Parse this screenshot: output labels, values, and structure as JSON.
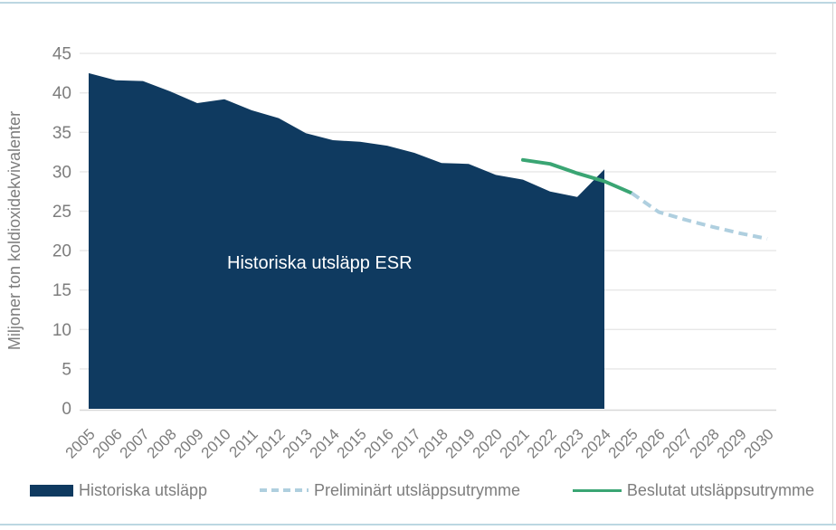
{
  "chart_data": {
    "type": "area",
    "title": "",
    "ylabel": "Miljoner ton koldioxidekvivalenter",
    "xlabel": "",
    "ylim": [
      0,
      45
    ],
    "xlim": [
      2005,
      2030
    ],
    "grid": true,
    "y_ticks": [
      0,
      5,
      10,
      15,
      20,
      25,
      30,
      35,
      40,
      45
    ],
    "x_ticks": [
      2005,
      2006,
      2007,
      2008,
      2009,
      2010,
      2011,
      2012,
      2013,
      2014,
      2015,
      2016,
      2017,
      2018,
      2019,
      2020,
      2021,
      2022,
      2023,
      2024,
      2025,
      2026,
      2027,
      2028,
      2029,
      2030
    ],
    "annotation": "Historiska utsläpp ESR",
    "legend_position": "bottom",
    "series": [
      {
        "name": "Historiska utsläpp",
        "type": "area",
        "style": "solid",
        "color": "#0f3a60",
        "x": [
          2005,
          2006,
          2007,
          2008,
          2009,
          2010,
          2011,
          2012,
          2013,
          2014,
          2015,
          2016,
          2017,
          2018,
          2019,
          2020,
          2021,
          2022,
          2023,
          2024
        ],
        "values": [
          42.5,
          41.6,
          41.5,
          40.2,
          38.7,
          39.2,
          37.8,
          36.8,
          34.9,
          34.0,
          33.8,
          33.3,
          32.4,
          31.1,
          31.0,
          29.6,
          29.0,
          27.5,
          26.8,
          30.3
        ]
      },
      {
        "name": "Beslutat utsläppsutrymme",
        "type": "line",
        "style": "solid",
        "color": "#3aa573",
        "x": [
          2021,
          2022,
          2023,
          2024,
          2025
        ],
        "values": [
          31.5,
          31.0,
          29.8,
          28.8,
          27.3
        ]
      },
      {
        "name": "Preliminärt utsläppsutrymme",
        "type": "line",
        "style": "dashed",
        "color": "#afcfdf",
        "x": [
          2025,
          2026,
          2027,
          2028,
          2029,
          2030
        ],
        "values": [
          27.3,
          24.9,
          23.9,
          23.0,
          22.2,
          21.5
        ]
      }
    ]
  },
  "legend": {
    "items": [
      {
        "label": "Historiska utsläpp",
        "swatch": "area",
        "color": "#0f3a60"
      },
      {
        "label": "Preliminärt utsläppsutrymme",
        "swatch": "dashed-line",
        "color": "#afcfdf"
      },
      {
        "label": "Beslutat utsläppsutrymme",
        "swatch": "solid-line",
        "color": "#3aa573"
      }
    ]
  },
  "colors": {
    "grid": "#e7e7e7",
    "axis_line": "#d8d8d8",
    "axis_text": "#7d7d7d",
    "annotation_text": "#ffffff",
    "frame_line": "#bcd7e2"
  }
}
